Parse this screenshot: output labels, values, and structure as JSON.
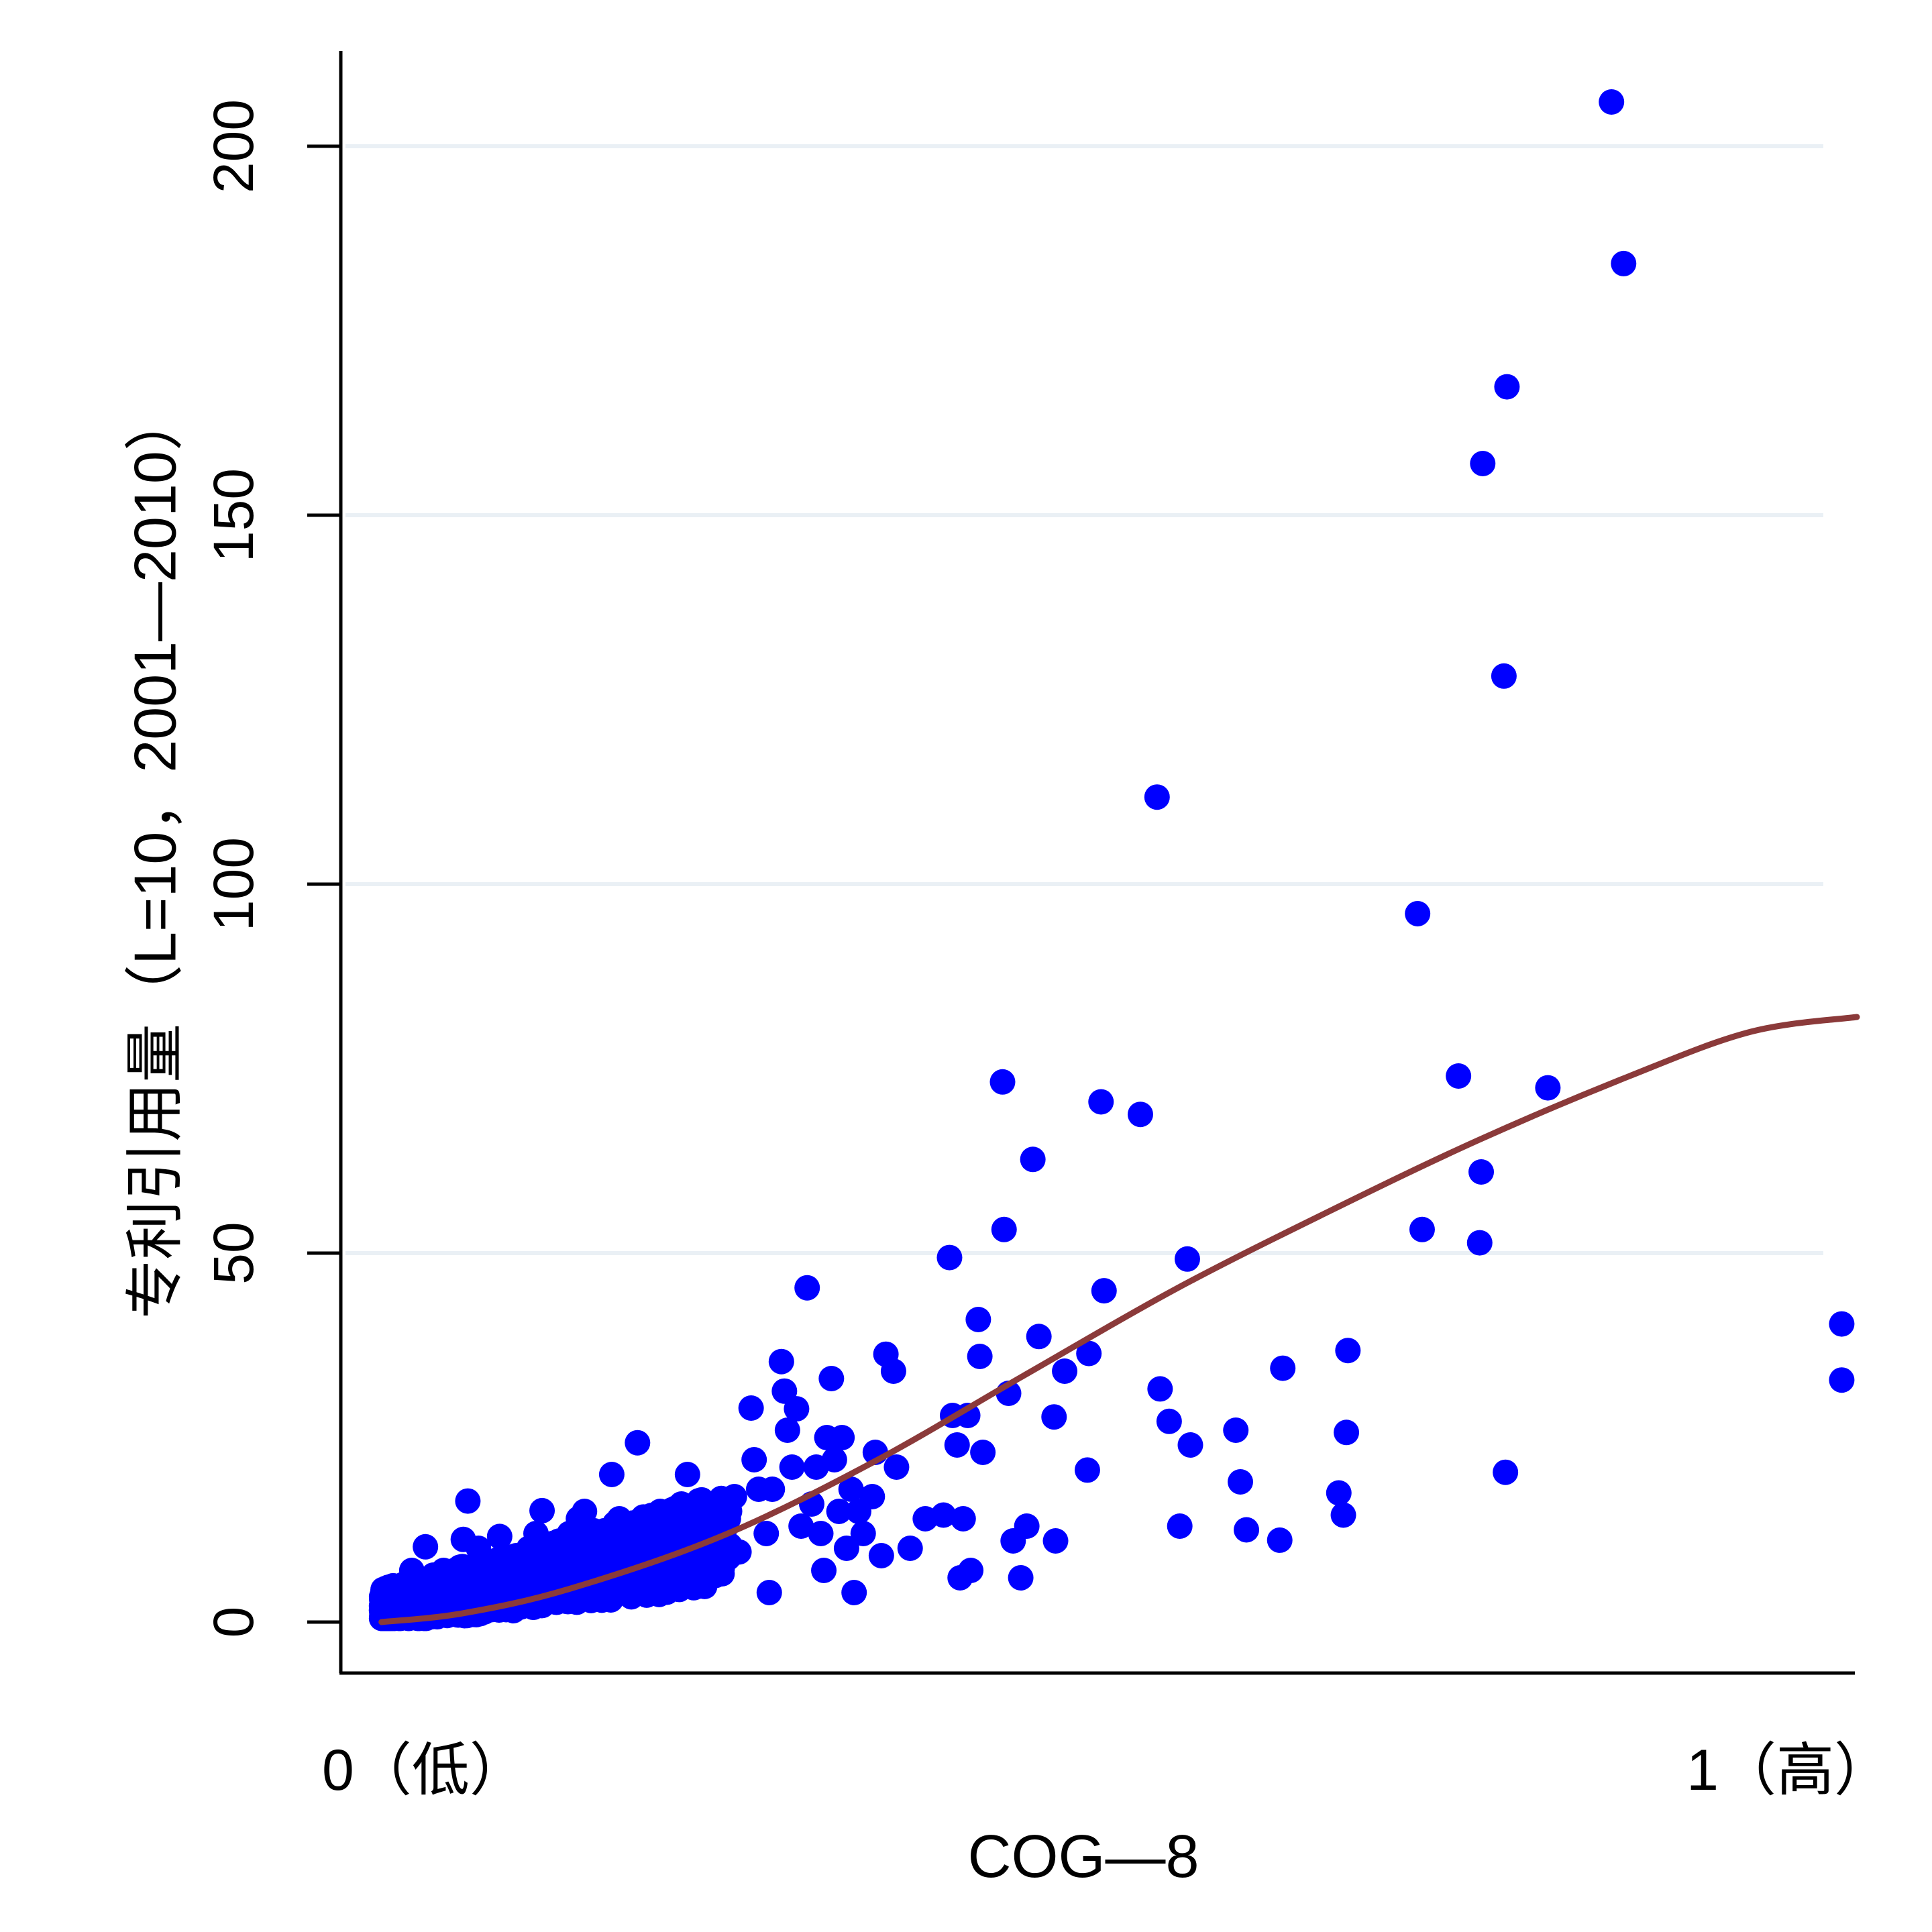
{
  "chart_data": {
    "type": "scatter",
    "title": "",
    "xlabel": "COG—8",
    "ylabel": "专利引用量（L=10，2001—2010）",
    "x_end_labels": {
      "low": "0（低）",
      "high": "1（高）"
    },
    "xlim": [
      0,
      1
    ],
    "ylim": [
      -6.5,
      213
    ],
    "y_ticks": [
      0,
      50,
      100,
      150,
      200
    ],
    "y_tick_labels": [
      "0",
      "50",
      "100",
      "150",
      "200"
    ],
    "grid": "horizontal",
    "legend": "none",
    "colors": {
      "points": "#0000ff",
      "fit_line": "#8b3a3a",
      "grid": "#eaf0f5",
      "axis": "#000000"
    },
    "series": [
      {
        "type": "scatter",
        "points": [
          [
            0.026,
            1.6
          ],
          [
            0.033,
            4.0
          ],
          [
            0.04,
            3.0
          ],
          [
            0.046,
            7.0
          ],
          [
            0.055,
            10.2
          ],
          [
            0.06,
            4.0
          ],
          [
            0.067,
            7.0
          ],
          [
            0.072,
            3.5
          ],
          [
            0.08,
            11.2
          ],
          [
            0.083,
            16.4
          ],
          [
            0.09,
            10.0
          ],
          [
            0.096,
            8.0
          ],
          [
            0.104,
            11.6
          ],
          [
            0.11,
            6.0
          ],
          [
            0.115,
            9.0
          ],
          [
            0.12,
            5.0
          ],
          [
            0.128,
            12.0
          ],
          [
            0.132,
            15.1
          ],
          [
            0.138,
            9.0
          ],
          [
            0.143,
            4.0
          ],
          [
            0.15,
            12.0
          ],
          [
            0.156,
            14.0
          ],
          [
            0.16,
            15.0
          ],
          [
            0.168,
            7.0
          ],
          [
            0.171,
            10.0
          ],
          [
            0.178,
            20.0
          ],
          [
            0.183,
            14.0
          ],
          [
            0.188,
            12.0
          ],
          [
            0.195,
            24.3
          ],
          [
            0.198,
            5.0
          ],
          [
            0.2,
            11.0
          ],
          [
            0.21,
            15.0
          ],
          [
            0.214,
            9.0
          ],
          [
            0.218,
            12.0
          ],
          [
            0.224,
            16.0
          ],
          [
            0.228,
            20.0
          ],
          [
            0.233,
            15.5
          ],
          [
            0.236,
            11.0
          ],
          [
            0.24,
            7.0
          ],
          [
            0.248,
            8.8
          ],
          [
            0.255,
            14.0
          ],
          [
            0.259,
            17.0
          ],
          [
            0.262,
            9.5
          ],
          [
            0.27,
            29.0
          ],
          [
            0.272,
            22.0
          ],
          [
            0.275,
            18.0
          ],
          [
            0.28,
            12.0
          ],
          [
            0.282,
            4.0
          ],
          [
            0.284,
            18.0
          ],
          [
            0.29,
            35.3
          ],
          [
            0.292,
            31.3
          ],
          [
            0.294,
            26.0
          ],
          [
            0.297,
            21.0
          ],
          [
            0.3,
            28.9
          ],
          [
            0.303,
            13.0
          ],
          [
            0.307,
            45.3
          ],
          [
            0.31,
            16.0
          ],
          [
            0.313,
            21.0
          ],
          [
            0.316,
            12.0
          ],
          [
            0.318,
            7.0
          ],
          [
            0.32,
            25.0
          ],
          [
            0.323,
            33.0
          ],
          [
            0.325,
            22.0
          ],
          [
            0.328,
            15.0
          ],
          [
            0.33,
            25.0
          ],
          [
            0.333,
            10.0
          ],
          [
            0.336,
            18.0
          ],
          [
            0.338,
            4.0
          ],
          [
            0.341,
            15.0
          ],
          [
            0.344,
            12.0
          ],
          [
            0.35,
            17.0
          ],
          [
            0.352,
            23.0
          ],
          [
            0.356,
            9.0
          ],
          [
            0.359,
            36.3
          ],
          [
            0.364,
            34.0
          ],
          [
            0.366,
            21.0
          ],
          [
            0.375,
            10.0
          ],
          [
            0.385,
            14.0
          ],
          [
            0.397,
            14.5
          ],
          [
            0.401,
            49.4
          ],
          [
            0.403,
            28.0
          ],
          [
            0.406,
            24.0
          ],
          [
            0.408,
            6.0
          ],
          [
            0.41,
            14.0
          ],
          [
            0.413,
            28.0
          ],
          [
            0.415,
            7.0
          ],
          [
            0.42,
            41.0
          ],
          [
            0.421,
            36.0
          ],
          [
            0.423,
            23.0
          ],
          [
            0.436,
            73.2
          ],
          [
            0.437,
            53.2
          ],
          [
            0.44,
            31.0
          ],
          [
            0.443,
            11.0
          ],
          [
            0.448,
            6.0
          ],
          [
            0.452,
            13.0
          ],
          [
            0.456,
            62.7
          ],
          [
            0.46,
            38.7
          ],
          [
            0.47,
            27.8
          ],
          [
            0.471,
            11.0
          ],
          [
            0.477,
            34.0
          ],
          [
            0.492,
            20.6
          ],
          [
            0.493,
            36.4
          ],
          [
            0.501,
            70.5
          ],
          [
            0.503,
            44.9
          ],
          [
            0.527,
            68.8
          ],
          [
            0.538,
            111.8
          ],
          [
            0.54,
            31.6
          ],
          [
            0.546,
            27.2
          ],
          [
            0.553,
            13.0
          ],
          [
            0.558,
            49.2
          ],
          [
            0.56,
            24.0
          ],
          [
            0.59,
            26.0
          ],
          [
            0.593,
            19.0
          ],
          [
            0.597,
            12.5
          ],
          [
            0.619,
            11.1
          ],
          [
            0.621,
            34.4
          ],
          [
            0.658,
            17.5
          ],
          [
            0.661,
            14.5
          ],
          [
            0.663,
            25.7
          ],
          [
            0.664,
            36.8
          ],
          [
            0.71,
            96.0
          ],
          [
            0.713,
            53.2
          ],
          [
            0.737,
            74.0
          ],
          [
            0.751,
            51.4
          ],
          [
            0.752,
            61.0
          ],
          [
            0.753,
            157.0
          ],
          [
            0.767,
            128.2
          ],
          [
            0.768,
            20.3
          ],
          [
            0.769,
            167.4
          ],
          [
            0.796,
            72.4
          ],
          [
            0.838,
            206.0
          ],
          [
            0.846,
            184.1
          ],
          [
            0.99,
            40.4
          ],
          [
            0.99,
            32.8
          ]
        ]
      },
      {
        "type": "line",
        "points": [
          [
            0.026,
            0.0
          ],
          [
            0.08,
            1.2
          ],
          [
            0.15,
            4.5
          ],
          [
            0.25,
            11.6
          ],
          [
            0.35,
            21.6
          ],
          [
            0.45,
            33.4
          ],
          [
            0.55,
            45.1
          ],
          [
            0.65,
            55.5
          ],
          [
            0.75,
            65.3
          ],
          [
            0.85,
            74.0
          ],
          [
            0.93,
            80.0
          ],
          [
            1.0,
            82.0
          ]
        ]
      }
    ]
  }
}
